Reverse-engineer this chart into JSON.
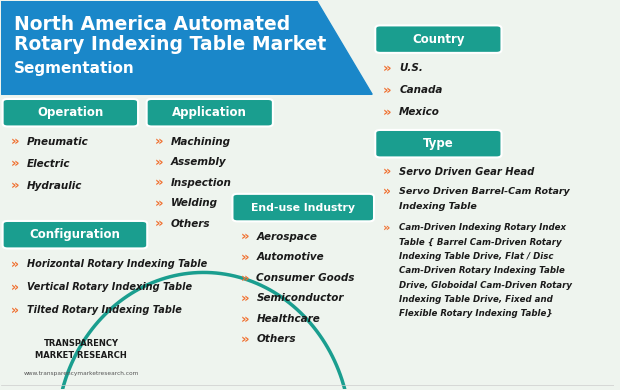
{
  "title_line1": "North America Automated",
  "title_line2": "Rotary Indexing Table Market",
  "title_line3": "Segmentation",
  "header_bg": "#1a87c9",
  "teal_color": "#1a9e8f",
  "orange_arrow": "#f07030",
  "bg_color": "#eef4ee",
  "item_font_size": 7.5,
  "header_font_size": 8.5,
  "operation_items": [
    "Pneumatic",
    "Electric",
    "Hydraulic"
  ],
  "config_items": [
    "Horizontal Rotary Indexing Table",
    "Vertical Rotary Indexing Table",
    "Tilted Rotary Indexing Table"
  ],
  "application_items": [
    "Machining",
    "Assembly",
    "Inspection",
    "Welding",
    "Others"
  ],
  "enduse_items": [
    "Aerospace",
    "Automotive",
    "Consumer Goods",
    "Semiconductor",
    "Healthcare",
    "Others"
  ],
  "country_items": [
    "U.S.",
    "Canada",
    "Mexico"
  ],
  "type_items": [
    "Servo Driven Gear Head",
    "Servo Driven Barrel-Cam Rotary\nIndexing Table",
    "Cam-Driven Indexing Rotary Index\nTable { Barrel Cam-Driven Rotary\nIndexing Table Drive, Flat / Disc\nCam-Driven Rotary Indexing Table\nDrive, Globoidal Cam-Driven Rotary\nIndexing Table Drive, Fixed and\nFlexible Rotary Indexing Table}"
  ]
}
